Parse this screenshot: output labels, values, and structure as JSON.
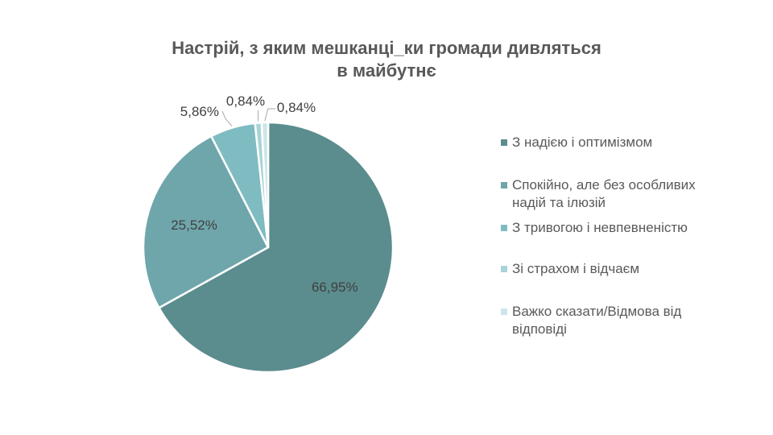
{
  "chart_data": {
    "type": "pie",
    "title": "Настрій, з яким мешканці_ки громади дивляться в майбутнє",
    "title_lines": [
      "Настрій, з яким мешканці_ки громади дивляться",
      "в майбутнє"
    ],
    "categories": [
      "З надією і оптимізмом",
      "Спокійно, але без особливих надій та ілюзій",
      "З тривогою і невпевненістю",
      "Зі страхом і відчаєм",
      "Важко сказати/Відмова від відповіді"
    ],
    "values": [
      66.95,
      25.52,
      5.86,
      0.84,
      0.84
    ],
    "data_labels": [
      "66,95%",
      "25,52%",
      "5,86%",
      "0,84%",
      "0,84%"
    ],
    "colors": [
      "#5b8c8e",
      "#6fa6ab",
      "#7fbcc2",
      "#a9d3d6",
      "#cde6e8"
    ],
    "legend_placement": "right"
  },
  "legend": {
    "items": [
      {
        "lines": [
          "З надією і оптимізмом"
        ]
      },
      {
        "lines": [
          "Спокійно, але без особливих",
          "надій та ілюзій"
        ]
      },
      {
        "lines": [
          "З тривогою і невпевненістю"
        ]
      },
      {
        "lines": [
          "Зі страхом і відчаєм"
        ]
      },
      {
        "lines": [
          "Важко сказати/Відмова від",
          "відповіді"
        ]
      }
    ]
  }
}
